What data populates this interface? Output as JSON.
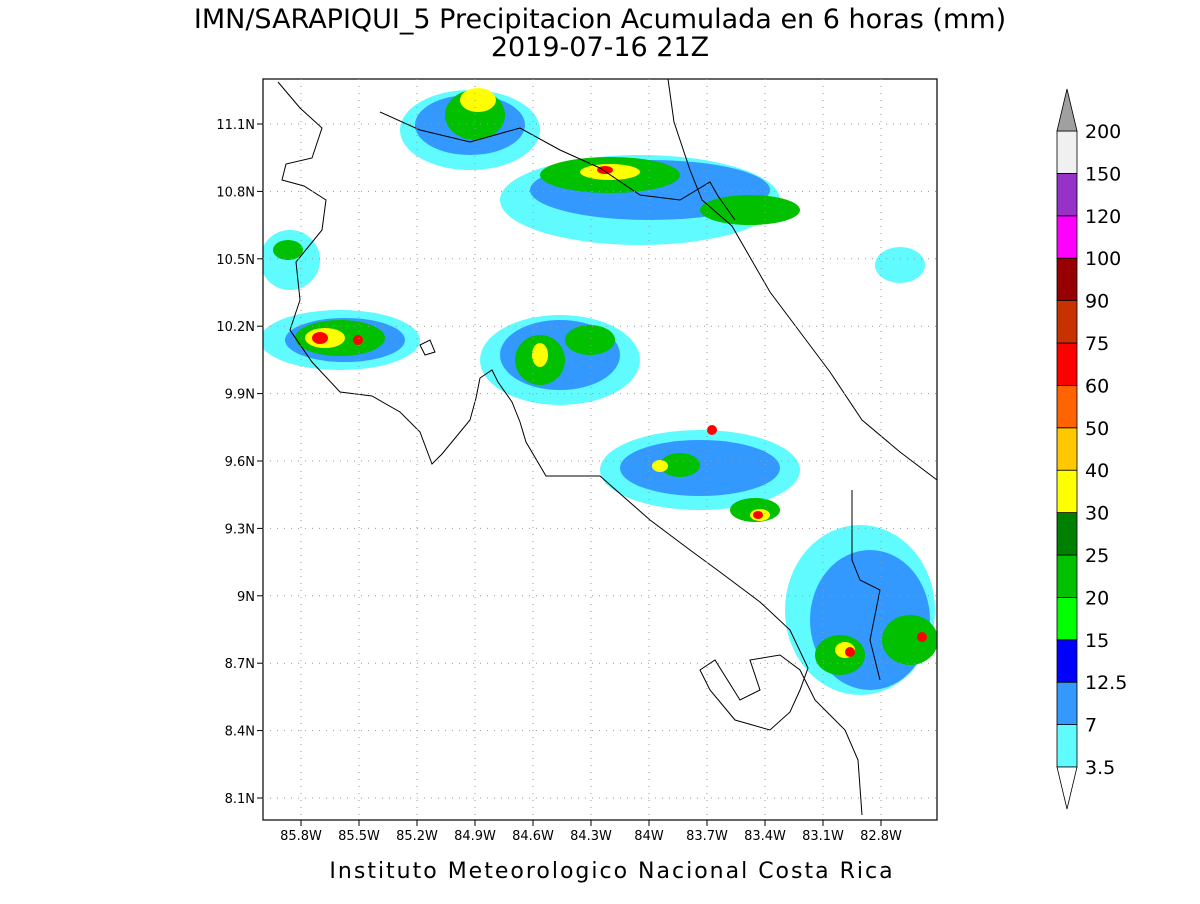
{
  "header": {
    "title": "IMN/SARAPIQUI_5 Precipitacion Acumulada en 6 horas (mm)",
    "subtitle": "2019-07-16 21Z"
  },
  "map": {
    "lat_labels": [
      "11.1N",
      "10.8N",
      "10.5N",
      "10.2N",
      "9.9N",
      "9.6N",
      "9.3N",
      "9N",
      "8.7N",
      "8.4N",
      "8.1N"
    ],
    "lon_labels": [
      "85.8W",
      "85.5W",
      "85.2W",
      "84.9W",
      "84.6W",
      "84.3W",
      "84W",
      "83.7W",
      "83.4W",
      "83.1W",
      "82.8W"
    ]
  },
  "colorbar": {
    "levels": [
      3.5,
      7,
      12.5,
      15,
      20,
      25,
      30,
      40,
      50,
      60,
      75,
      90,
      100,
      120,
      150,
      200
    ],
    "colors": [
      "#5ffbff",
      "#3399ff",
      "#0000ff",
      "#00ff00",
      "#00c000",
      "#008000",
      "#ffff00",
      "#ffc800",
      "#ff6400",
      "#ff0000",
      "#c83200",
      "#960000",
      "#ff00ff",
      "#9632c8",
      "#f0f0f0"
    ]
  },
  "footer": {
    "text": "Instituto Meteorologico Nacional Costa Rica"
  }
}
